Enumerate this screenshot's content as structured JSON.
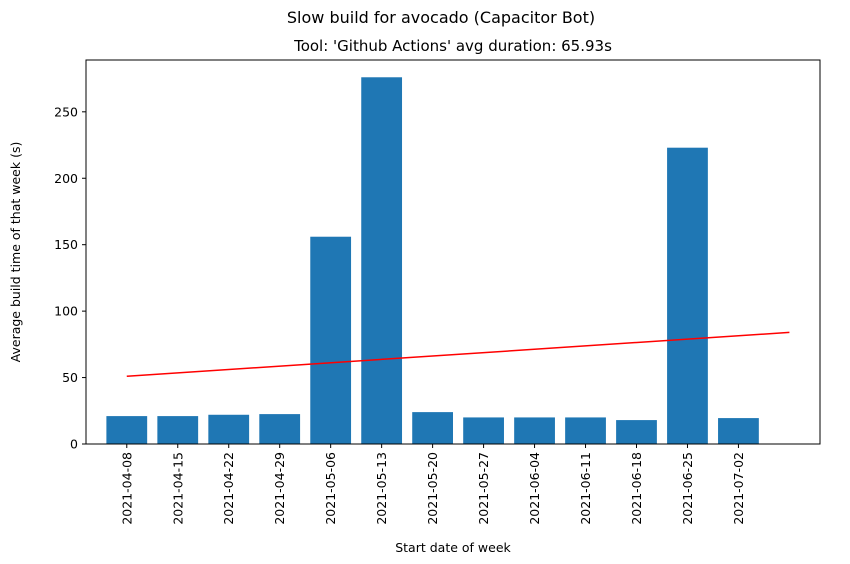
{
  "chart_data": {
    "type": "bar",
    "suptitle": "Slow build for avocado (Capacitor Bot)",
    "title": "Tool: 'Github Actions' avg duration: 65.93s",
    "xlabel": "Start date of week",
    "ylabel": "Average build time of that week (s)",
    "categories": [
      "2021-04-08",
      "2021-04-15",
      "2021-04-22",
      "2021-04-29",
      "2021-05-06",
      "2021-05-13",
      "2021-05-20",
      "2021-05-27",
      "2021-06-04",
      "2021-06-11",
      "2021-06-18",
      "2021-06-25",
      "2021-07-02"
    ],
    "values": [
      21,
      21,
      22,
      22.5,
      156,
      276,
      24,
      20,
      20,
      20,
      18,
      223,
      19.5
    ],
    "yticks": [
      0,
      50,
      100,
      150,
      200,
      250
    ],
    "ylim": [
      0,
      289
    ],
    "bar_color": "#1f77b4",
    "trend_line": {
      "color": "#ff0000",
      "start_value": 51,
      "end_value": 84
    },
    "grid": false
  }
}
